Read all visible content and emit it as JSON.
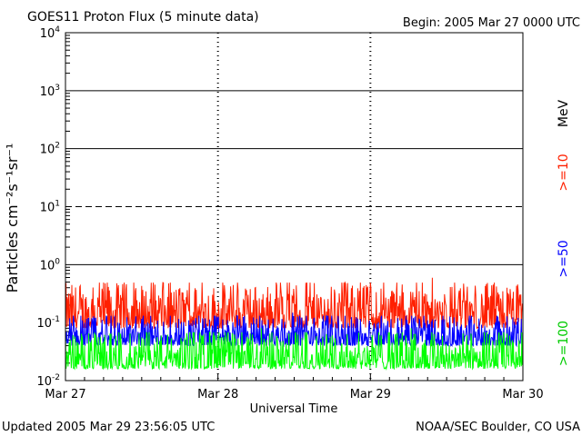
{
  "chart_data": {
    "type": "line",
    "title": "GOES11 Proton Flux (5 minute data)",
    "begin_label": "Begin: 2005 Mar 27 0000 UTC",
    "xlabel": "Universal Time",
    "ylabel": "Particles cm⁻²s⁻¹sr⁻¹",
    "x_ticks": [
      "Mar 27",
      "Mar 28",
      "Mar 29",
      "Mar 30"
    ],
    "xlim": [
      "2005-03-27 00:00",
      "2005-03-30 00:00"
    ],
    "y_scale": "log",
    "ylim": [
      0.01,
      10000
    ],
    "y_ticks": [
      {
        "base": "10",
        "exp": "-2"
      },
      {
        "base": "10",
        "exp": "-1"
      },
      {
        "base": "10",
        "exp": "0"
      },
      {
        "base": "10",
        "exp": "1"
      },
      {
        "base": "10",
        "exp": "2"
      },
      {
        "base": "10",
        "exp": "3"
      },
      {
        "base": "10",
        "exp": "4"
      }
    ],
    "unit_label": "MeV",
    "series": [
      {
        "name": ">=10",
        "color": "#ff2000",
        "typical_min": 0.08,
        "typical_max": 0.6
      },
      {
        "name": ">=50",
        "color": "#0000ff",
        "typical_min": 0.04,
        "typical_max": 0.15
      },
      {
        "name": ">=100",
        "color": "#00ff00",
        "typical_min": 0.016,
        "typical_max": 0.08
      }
    ],
    "footer_left": "Updated 2005 Mar 29 23:56:05 UTC",
    "footer_right": "NOAA/SEC Boulder, CO USA"
  }
}
